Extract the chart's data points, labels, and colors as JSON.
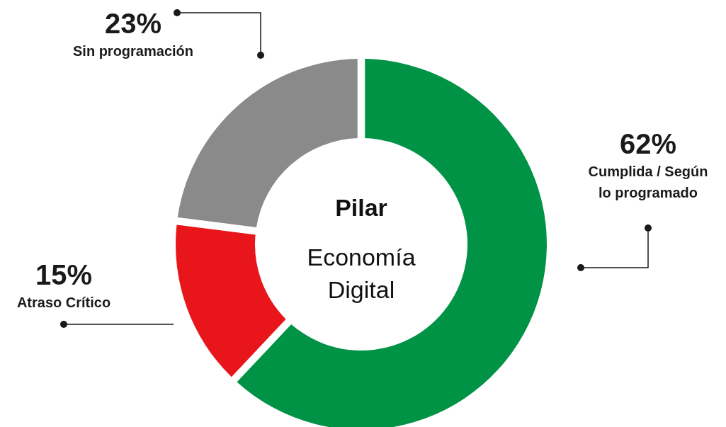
{
  "chart_data": {
    "type": "donut",
    "title": "Pilar",
    "subtitle": "Economía Digital",
    "categories": [
      "Cumplida / Según lo programado",
      "Atraso Crítico",
      "Sin programación"
    ],
    "values": [
      62,
      15,
      23
    ],
    "value_labels": [
      "62%",
      "15%",
      "23%"
    ],
    "colors": [
      "#009245",
      "#e8161b",
      "#8a8a8a"
    ]
  }
}
